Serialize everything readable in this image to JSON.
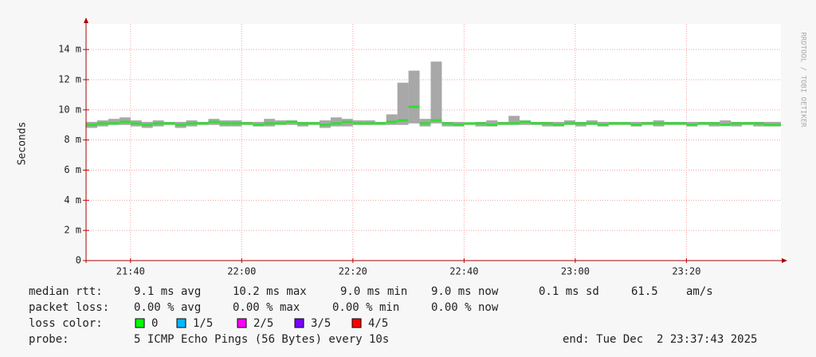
{
  "chart_data": {
    "type": "smoke",
    "y_label": "Seconds",
    "side_text": "RRDTOOL / TOBI OETIKER",
    "x": [
      "21:32",
      "21:34",
      "21:36",
      "21:38",
      "21:40",
      "21:42",
      "21:44",
      "21:46",
      "21:48",
      "21:50",
      "21:52",
      "21:54",
      "21:56",
      "21:58",
      "22:00",
      "22:02",
      "22:04",
      "22:06",
      "22:08",
      "22:10",
      "22:12",
      "22:14",
      "22:16",
      "22:18",
      "22:20",
      "22:22",
      "22:24",
      "22:26",
      "22:28",
      "22:30",
      "22:32",
      "22:34",
      "22:36",
      "22:38",
      "22:40",
      "22:42",
      "22:44",
      "22:46",
      "22:48",
      "22:50",
      "22:52",
      "22:54",
      "22:56",
      "22:58",
      "23:00",
      "23:02",
      "23:04",
      "23:06",
      "23:08",
      "23:10",
      "23:12",
      "23:14",
      "23:16",
      "23:18",
      "23:20",
      "23:22",
      "23:24",
      "23:26",
      "23:28",
      "23:30",
      "23:32",
      "23:34",
      "23:36"
    ],
    "median": [
      0.009,
      0.0091,
      0.0091,
      0.0092,
      0.0091,
      0.009,
      0.0091,
      0.0091,
      0.009,
      0.0091,
      0.0091,
      0.0092,
      0.0091,
      0.0091,
      0.0091,
      0.009,
      0.0091,
      0.0091,
      0.0092,
      0.0091,
      0.0091,
      0.009,
      0.0091,
      0.0092,
      0.0091,
      0.0091,
      0.0091,
      0.0092,
      0.0093,
      0.0102,
      0.0091,
      0.0093,
      0.0091,
      0.009,
      0.0091,
      0.0091,
      0.009,
      0.0091,
      0.0091,
      0.0092,
      0.0091,
      0.0091,
      0.009,
      0.0091,
      0.0091,
      0.0091,
      0.009,
      0.0091,
      0.0091,
      0.009,
      0.0091,
      0.0091,
      0.0091,
      0.0091,
      0.009,
      0.0091,
      0.0091,
      0.009,
      0.0091,
      0.0091,
      0.0091,
      0.009,
      0.009
    ],
    "high": [
      0.0092,
      0.0093,
      0.0094,
      0.0095,
      0.0093,
      0.0092,
      0.0093,
      0.0092,
      0.0092,
      0.0093,
      0.0092,
      0.0094,
      0.0093,
      0.0093,
      0.0092,
      0.0092,
      0.0094,
      0.0093,
      0.0093,
      0.0092,
      0.0092,
      0.0093,
      0.0095,
      0.0094,
      0.0093,
      0.0093,
      0.0092,
      0.0097,
      0.0118,
      0.0126,
      0.0094,
      0.0132,
      0.0092,
      0.0092,
      0.0091,
      0.0092,
      0.0093,
      0.0092,
      0.0096,
      0.0093,
      0.0092,
      0.0092,
      0.0092,
      0.0093,
      0.0092,
      0.0093,
      0.0092,
      0.0092,
      0.0092,
      0.0092,
      0.0092,
      0.0093,
      0.0092,
      0.0092,
      0.0092,
      0.0092,
      0.0092,
      0.0093,
      0.0092,
      0.0092,
      0.0092,
      0.0092,
      0.0092
    ],
    "low": [
      0.0088,
      0.0089,
      0.009,
      0.009,
      0.0089,
      0.0088,
      0.0089,
      0.009,
      0.0088,
      0.0089,
      0.009,
      0.009,
      0.0089,
      0.0089,
      0.009,
      0.0089,
      0.0089,
      0.009,
      0.009,
      0.0089,
      0.009,
      0.0088,
      0.0089,
      0.0089,
      0.009,
      0.009,
      0.009,
      0.009,
      0.009,
      0.0091,
      0.0089,
      0.0091,
      0.0089,
      0.0089,
      0.009,
      0.0089,
      0.0089,
      0.009,
      0.009,
      0.009,
      0.009,
      0.0089,
      0.0089,
      0.009,
      0.0089,
      0.009,
      0.0089,
      0.009,
      0.009,
      0.0089,
      0.009,
      0.0089,
      0.009,
      0.009,
      0.0089,
      0.009,
      0.0089,
      0.009,
      0.0089,
      0.009,
      0.0089,
      0.0089,
      0.0089
    ],
    "median_color": "#33dd33",
    "smoke_color": "#a8a8a8",
    "xlim": [
      "21:32",
      "23:37"
    ],
    "xticks": [
      "21:40",
      "22:00",
      "22:20",
      "22:40",
      "23:00",
      "23:20"
    ],
    "ylim": [
      0,
      0.0157
    ],
    "yticks": [
      0,
      {
        "value": 0.002,
        "label": "2 m"
      },
      {
        "value": 0.004,
        "label": "4 m"
      },
      {
        "value": 0.006,
        "label": "6 m"
      },
      {
        "value": 0.008,
        "label": "8 m"
      },
      {
        "value": 0.01,
        "label": "10 m"
      },
      {
        "value": 0.012,
        "label": "12 m"
      },
      {
        "value": 0.014,
        "label": "14 m"
      }
    ],
    "grid": true,
    "legend": {
      "median_rtt": [
        "median rtt:",
        "9.1 ms avg",
        "10.2 ms max",
        "9.0 ms min",
        "9.0 ms now",
        "0.1 ms sd",
        "61.5",
        "am/s"
      ],
      "packet_loss": [
        "packet loss:",
        "0.00 % avg",
        "0.00 % max",
        "0.00 % min",
        "0.00 % now"
      ],
      "loss_color_label": "loss color:",
      "loss_colors": [
        {
          "label": "0",
          "color": "#00ff00"
        },
        {
          "label": "1/5",
          "color": "#00b8ff"
        },
        {
          "label": "2/5",
          "color": "#ff00ff"
        },
        {
          "label": "3/5",
          "color": "#7a00ff"
        },
        {
          "label": "4/5",
          "color": "#ff0000"
        }
      ],
      "probe": [
        "probe:",
        "5 ICMP Echo Pings (56 Bytes) every 10s"
      ],
      "end": "end: Tue Dec  2 23:37:43 2025"
    }
  }
}
